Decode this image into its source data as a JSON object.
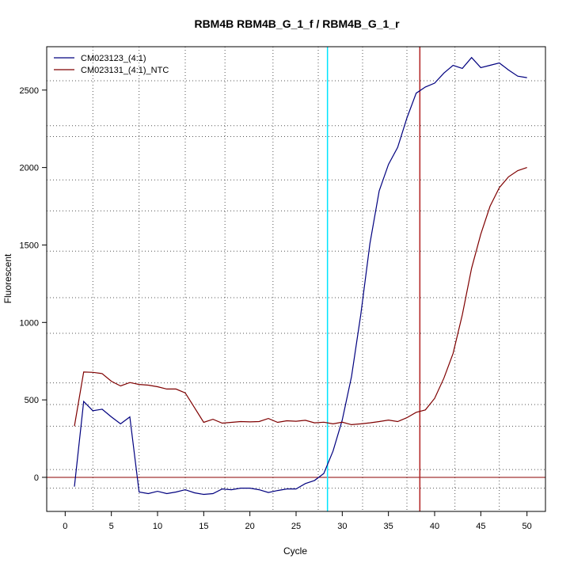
{
  "chart_data": {
    "type": "line",
    "title": "RBM4B  RBM4B_G_1_f / RBM4B_G_1_r",
    "xlabel": "Cycle",
    "ylabel": "Fluorescent",
    "xlim": [
      -2,
      52
    ],
    "ylim": [
      -220,
      2780
    ],
    "x_ticks": [
      0,
      5,
      10,
      15,
      20,
      25,
      30,
      35,
      40,
      45,
      50
    ],
    "y_ticks": [
      0,
      500,
      1000,
      1500,
      2000,
      2500
    ],
    "grid": "dotted",
    "grid_x": [
      3,
      8,
      13,
      17.3,
      22.5,
      27.4,
      32.2,
      37,
      42.2,
      47
    ],
    "grid_y": [
      -250,
      -70,
      50,
      330,
      470,
      610,
      930,
      1160,
      1460,
      1720,
      1920,
      2200,
      2270,
      2560
    ],
    "legend_position": "top-left",
    "series": [
      {
        "name": "CM023123_(4:1)",
        "color": "#00007f",
        "x": [
          1,
          2,
          3,
          4,
          5,
          6,
          7,
          8,
          9,
          10,
          11,
          12,
          13,
          14,
          15,
          16,
          17,
          18,
          19,
          20,
          21,
          22,
          23,
          24,
          25,
          26,
          27,
          28,
          29,
          30,
          31,
          32,
          33,
          34,
          35,
          36,
          37,
          38,
          39,
          40,
          41,
          42,
          43,
          44,
          45,
          46,
          47,
          48,
          49,
          50
        ],
        "values": [
          -60,
          490,
          430,
          440,
          390,
          345,
          390,
          -95,
          -105,
          -90,
          -105,
          -95,
          -80,
          -100,
          -110,
          -105,
          -75,
          -80,
          -70,
          -70,
          -80,
          -98,
          -85,
          -75,
          -75,
          -40,
          -20,
          25,
          170,
          370,
          650,
          1050,
          1510,
          1850,
          2020,
          2130,
          2320,
          2480,
          2520,
          2545,
          2610,
          2660,
          2640,
          2710,
          2645,
          2660,
          2675,
          2630,
          2590,
          2580
        ]
      },
      {
        "name": "CM023131_(4:1)_NTC",
        "color": "#7f0000",
        "x": [
          1,
          2,
          3,
          4,
          5,
          6,
          7,
          8,
          9,
          10,
          11,
          12,
          13,
          14,
          15,
          16,
          17,
          18,
          19,
          20,
          21,
          22,
          23,
          24,
          25,
          26,
          27,
          28,
          29,
          30,
          31,
          32,
          33,
          34,
          35,
          36,
          37,
          38,
          39,
          40,
          41,
          42,
          43,
          44,
          45,
          46,
          47,
          48,
          49,
          50
        ],
        "values": [
          330,
          680,
          678,
          670,
          620,
          590,
          612,
          600,
          595,
          585,
          570,
          570,
          545,
          450,
          355,
          375,
          350,
          355,
          360,
          358,
          360,
          380,
          355,
          365,
          362,
          368,
          352,
          356,
          345,
          356,
          340,
          345,
          352,
          360,
          370,
          360,
          385,
          420,
          435,
          510,
          640,
          800,
          1050,
          1350,
          1570,
          1750,
          1870,
          1940,
          1980,
          2000
        ]
      }
    ],
    "vertical_markers": [
      {
        "x": 28.4,
        "color": "#00e5ff"
      },
      {
        "x": 38.4,
        "color": "#b22222"
      }
    ],
    "horizontal_markers": [
      {
        "y": 0,
        "color": "#8b0000"
      }
    ]
  }
}
